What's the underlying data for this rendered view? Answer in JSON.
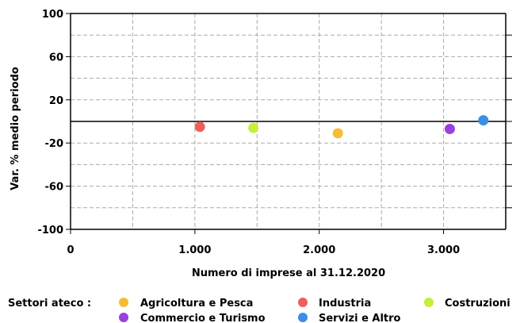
{
  "chart_data": {
    "type": "scatter",
    "title": "",
    "xlabel": "Numero di imprese al 31.12.2020",
    "ylabel": "Var. % medio periodo",
    "xlim": [
      0,
      3500
    ],
    "ylim": [
      -100,
      100
    ],
    "x_ticks": [
      0,
      1000,
      2000,
      3000
    ],
    "x_tick_labels": [
      "0",
      "1.000",
      "2.000",
      "3.000"
    ],
    "y_ticks": [
      100,
      60,
      20,
      -20,
      -60,
      -100
    ],
    "y_tick_labels": [
      "100",
      "60",
      "20",
      "-20",
      "-60",
      "-100"
    ],
    "grid": true,
    "legend_title": "Settori ateco :",
    "legend_position": "bottom",
    "series": [
      {
        "name": "Agricoltura e Pesca",
        "color": "#f5bd33",
        "x": [
          2150
        ],
        "y": [
          -11
        ]
      },
      {
        "name": "Industria",
        "color": "#ee5f5b",
        "x": [
          1040
        ],
        "y": [
          -5
        ]
      },
      {
        "name": "Costruzioni",
        "color": "#c6ee3c",
        "x": [
          1470
        ],
        "y": [
          -6
        ]
      },
      {
        "name": "Commercio e Turismo",
        "color": "#9b3fe0",
        "x": [
          3050
        ],
        "y": [
          -7
        ]
      },
      {
        "name": "Servizi e Altro",
        "color": "#3a8ee8",
        "x": [
          3320
        ],
        "y": [
          1
        ]
      }
    ]
  }
}
